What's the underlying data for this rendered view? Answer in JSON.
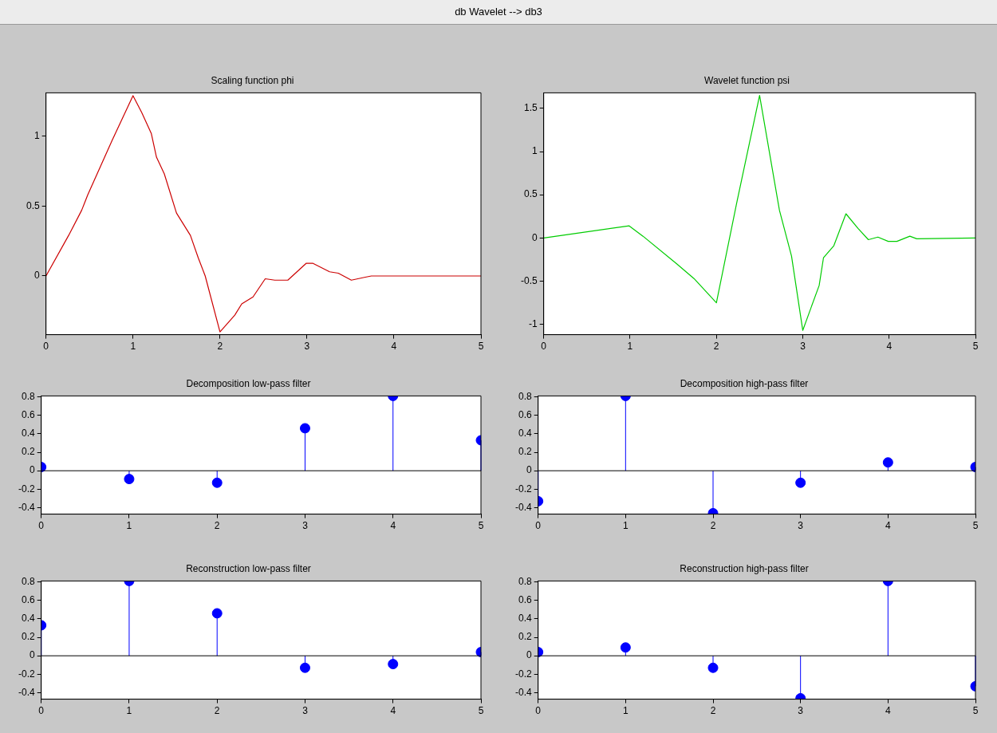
{
  "chart_data": [
    {
      "type": "line",
      "title": "Scaling function phi",
      "annotations": [
        "db Wavelet --> db3"
      ],
      "xlim": [
        0,
        5
      ],
      "xticks": [
        0,
        1,
        2,
        3,
        4,
        5
      ],
      "ylim": [
        -0.42,
        1.31
      ],
      "yticks": [
        0,
        0.5,
        1
      ],
      "series": [
        {
          "color": "#cc0000",
          "x": [
            0,
            0.26,
            0.41,
            0.48,
            0.76,
            1.0,
            1.1,
            1.21,
            1.27,
            1.36,
            1.5,
            1.66,
            1.75,
            1.83,
            2.0,
            2.17,
            2.25,
            2.38,
            2.52,
            2.63,
            2.73,
            2.78,
            2.99,
            3.07,
            3.26,
            3.36,
            3.51,
            3.66,
            3.74,
            5
          ],
          "values": [
            0,
            0.29,
            0.47,
            0.58,
            0.97,
            1.29,
            1.17,
            1.02,
            0.85,
            0.73,
            0.45,
            0.29,
            0.13,
            0,
            -0.4,
            -0.28,
            -0.2,
            -0.15,
            -0.02,
            -0.03,
            -0.03,
            -0.03,
            0.09,
            0.09,
            0.03,
            0.02,
            -0.03,
            -0.01,
            0,
            0
          ]
        }
      ]
    },
    {
      "type": "line",
      "title": "Wavelet function psi",
      "xlim": [
        0,
        5
      ],
      "xticks": [
        0,
        1,
        2,
        3,
        4,
        5
      ],
      "ylim": [
        -1.12,
        1.68
      ],
      "yticks": [
        -1,
        -0.5,
        0,
        0.5,
        1,
        1.5
      ],
      "series": [
        {
          "color": "#00cc00",
          "x": [
            0,
            0.99,
            1.15,
            1.54,
            1.74,
            2.0,
            2.24,
            2.5,
            2.73,
            2.87,
            3.0,
            3.19,
            3.24,
            3.36,
            3.5,
            3.64,
            3.76,
            3.87,
            3.99,
            4.09,
            4.24,
            4.32,
            5
          ],
          "values": [
            0,
            0.14,
            0.02,
            -0.3,
            -0.47,
            -0.75,
            0.43,
            1.65,
            0.32,
            -0.21,
            -1.07,
            -0.55,
            -0.23,
            -0.09,
            0.28,
            0.11,
            -0.02,
            0.01,
            -0.04,
            -0.04,
            0.02,
            -0.01,
            0
          ]
        }
      ]
    },
    {
      "type": "lollipop",
      "title": "Decomposition low-pass filter",
      "x": [
        0,
        1,
        2,
        3,
        4,
        5
      ],
      "xlim": [
        0,
        5
      ],
      "xticks": [
        0,
        1,
        2,
        3,
        4,
        5
      ],
      "ylim": [
        -0.47,
        0.81
      ],
      "yticks": [
        -0.4,
        -0.2,
        0,
        0.2,
        0.4,
        0.6,
        0.8
      ],
      "marker": "circle",
      "ref_lines": [
        {
          "axis": "y",
          "value": 0,
          "color": "#000000"
        }
      ],
      "series": [
        {
          "color": "#0000ff",
          "values": [
            0.04,
            -0.09,
            -0.13,
            0.46,
            0.81,
            0.33
          ]
        }
      ]
    },
    {
      "type": "lollipop",
      "title": "Decomposition high-pass filter",
      "x": [
        0,
        1,
        2,
        3,
        4,
        5
      ],
      "xlim": [
        0,
        5
      ],
      "xticks": [
        0,
        1,
        2,
        3,
        4,
        5
      ],
      "ylim": [
        -0.47,
        0.81
      ],
      "yticks": [
        -0.4,
        -0.2,
        0,
        0.2,
        0.4,
        0.6,
        0.8
      ],
      "marker": "circle",
      "ref_lines": [
        {
          "axis": "y",
          "value": 0,
          "color": "#000000"
        }
      ],
      "series": [
        {
          "color": "#0000ff",
          "values": [
            -0.33,
            0.81,
            -0.46,
            -0.13,
            0.09,
            0.04
          ]
        }
      ]
    },
    {
      "type": "lollipop",
      "title": "Reconstruction low-pass filter",
      "x": [
        0,
        1,
        2,
        3,
        4,
        5
      ],
      "xlim": [
        0,
        5
      ],
      "xticks": [
        0,
        1,
        2,
        3,
        4,
        5
      ],
      "ylim": [
        -0.47,
        0.81
      ],
      "yticks": [
        -0.4,
        -0.2,
        0,
        0.2,
        0.4,
        0.6,
        0.8
      ],
      "marker": "circle",
      "ref_lines": [
        {
          "axis": "y",
          "value": 0,
          "color": "#000000"
        }
      ],
      "series": [
        {
          "color": "#0000ff",
          "values": [
            0.33,
            0.81,
            0.46,
            -0.13,
            -0.09,
            0.04
          ]
        }
      ]
    },
    {
      "type": "lollipop",
      "title": "Reconstruction high-pass filter",
      "x": [
        0,
        1,
        2,
        3,
        4,
        5
      ],
      "xlim": [
        0,
        5
      ],
      "xticks": [
        0,
        1,
        2,
        3,
        4,
        5
      ],
      "ylim": [
        -0.47,
        0.81
      ],
      "yticks": [
        -0.4,
        -0.2,
        0,
        0.2,
        0.4,
        0.6,
        0.8
      ],
      "marker": "circle",
      "ref_lines": [
        {
          "axis": "y",
          "value": 0,
          "color": "#000000"
        }
      ],
      "series": [
        {
          "color": "#0000ff",
          "values": [
            0.04,
            0.09,
            -0.13,
            -0.46,
            0.81,
            -0.33
          ]
        }
      ]
    }
  ]
}
